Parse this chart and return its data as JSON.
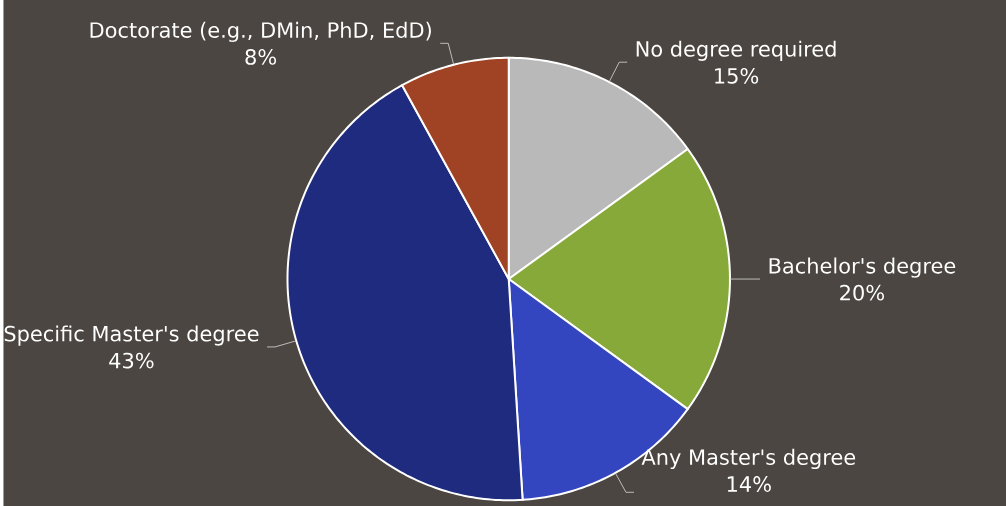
{
  "chart_data": {
    "type": "pie",
    "categories": [
      "No degree required",
      "Bachelor's degree",
      "Any Master's degree",
      "Specific Master's degree",
      "Doctorate (e.g., DMin, PhD, EdD)"
    ],
    "values": [
      15,
      20,
      14,
      43,
      8
    ],
    "colors": [
      "#b9b9b9",
      "#87a93a",
      "#3346c0",
      "#1f2b7e",
      "#a04224"
    ],
    "data_labels": true,
    "value_labels": [
      "15%",
      "20%",
      "14%",
      "43%",
      "8%"
    ]
  }
}
